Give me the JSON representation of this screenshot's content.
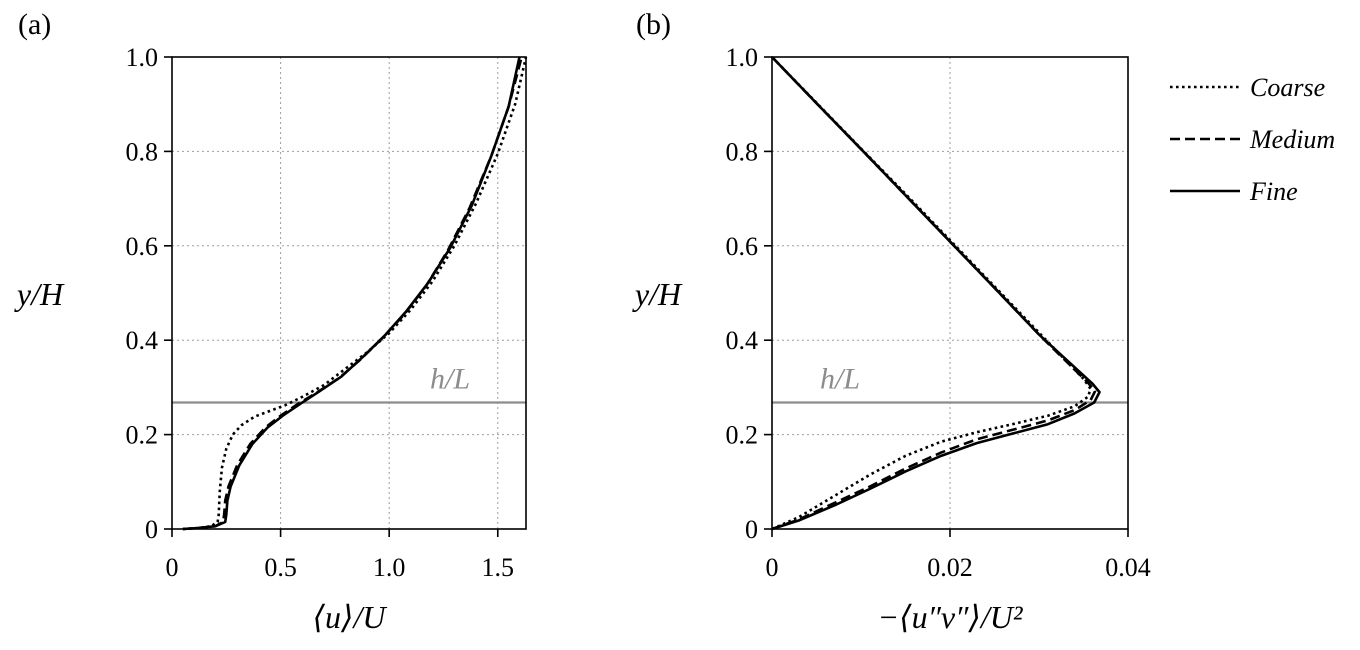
{
  "chart_data": [
    {
      "type": "line",
      "panel_label": "(a)",
      "xlabel": "⟨u⟩/U",
      "ylabel": "y/H",
      "xlim": [
        0,
        1.63
      ],
      "ylim": [
        0,
        1.0
      ],
      "xticks": [
        0,
        0.5,
        1.0,
        1.5
      ],
      "xtick_labels": [
        "0",
        "0.5",
        "1.0",
        "1.5"
      ],
      "yticks": [
        0,
        0.2,
        0.4,
        0.6,
        0.8,
        1.0
      ],
      "ytick_labels": [
        "0",
        "0.2",
        "0.4",
        "0.6",
        "0.8",
        "1.0"
      ],
      "grid": true,
      "reference_line": {
        "y": 0.268,
        "label": "h/L"
      },
      "series": [
        {
          "name": "Coarse",
          "style": "dotted",
          "x": [
            0.05,
            0.12,
            0.18,
            0.21,
            0.215,
            0.22,
            0.23,
            0.25,
            0.28,
            0.32,
            0.38,
            0.45,
            0.52,
            0.6,
            0.7,
            0.8,
            0.9,
            1.0,
            1.1,
            1.2,
            1.3,
            1.4,
            1.5,
            1.58,
            1.63
          ],
          "y": [
            0.0,
            0.002,
            0.006,
            0.015,
            0.03,
            0.08,
            0.13,
            0.17,
            0.2,
            0.22,
            0.238,
            0.25,
            0.262,
            0.28,
            0.305,
            0.34,
            0.375,
            0.415,
            0.465,
            0.525,
            0.6,
            0.69,
            0.795,
            0.9,
            1.0
          ]
        },
        {
          "name": "Medium",
          "style": "dashed",
          "x": [
            0.05,
            0.12,
            0.2,
            0.235,
            0.24,
            0.245,
            0.26,
            0.3,
            0.36,
            0.43,
            0.5,
            0.58,
            0.67,
            0.77,
            0.87,
            0.97,
            1.07,
            1.17,
            1.27,
            1.37,
            1.47,
            1.55,
            1.61
          ],
          "y": [
            0.0,
            0.002,
            0.006,
            0.015,
            0.03,
            0.06,
            0.09,
            0.135,
            0.18,
            0.215,
            0.24,
            0.265,
            0.29,
            0.32,
            0.36,
            0.405,
            0.455,
            0.515,
            0.59,
            0.68,
            0.79,
            0.895,
            1.0
          ]
        },
        {
          "name": "Fine",
          "style": "solid",
          "x": [
            0.05,
            0.12,
            0.2,
            0.245,
            0.25,
            0.255,
            0.27,
            0.31,
            0.37,
            0.44,
            0.51,
            0.59,
            0.68,
            0.78,
            0.88,
            0.98,
            1.08,
            1.18,
            1.28,
            1.38,
            1.47,
            1.55,
            1.6
          ],
          "y": [
            0.0,
            0.002,
            0.006,
            0.015,
            0.03,
            0.06,
            0.09,
            0.135,
            0.18,
            0.215,
            0.24,
            0.265,
            0.292,
            0.323,
            0.365,
            0.41,
            0.462,
            0.522,
            0.595,
            0.685,
            0.79,
            0.895,
            1.0
          ]
        }
      ]
    },
    {
      "type": "line",
      "panel_label": "(b)",
      "xlabel": "−⟨u″v″⟩/U²",
      "ylabel": "y/H",
      "xlim": [
        0,
        0.04
      ],
      "ylim": [
        0,
        1.0
      ],
      "xticks": [
        0,
        0.02,
        0.04
      ],
      "xtick_labels": [
        "0",
        "0.02",
        "0.04"
      ],
      "yticks": [
        0,
        0.2,
        0.4,
        0.6,
        0.8,
        1.0
      ],
      "ytick_labels": [
        "0",
        "0.2",
        "0.4",
        "0.6",
        "0.8",
        "1.0"
      ],
      "grid": true,
      "reference_line": {
        "y": 0.268,
        "label": "h/L"
      },
      "series": [
        {
          "name": "Coarse",
          "style": "dotted",
          "x": [
            0.0,
            0.003,
            0.007,
            0.011,
            0.015,
            0.019,
            0.023,
            0.027,
            0.031,
            0.034,
            0.0355,
            0.0358,
            0.035,
            0.03,
            0.025,
            0.02,
            0.015,
            0.01,
            0.005,
            0.0
          ],
          "y": [
            0.0,
            0.025,
            0.07,
            0.115,
            0.155,
            0.185,
            0.205,
            0.222,
            0.24,
            0.26,
            0.28,
            0.297,
            0.318,
            0.416,
            0.514,
            0.612,
            0.71,
            0.806,
            0.903,
            1.0
          ]
        },
        {
          "name": "Medium",
          "style": "dashed",
          "x": [
            0.0,
            0.003,
            0.007,
            0.011,
            0.015,
            0.019,
            0.023,
            0.027,
            0.031,
            0.034,
            0.0358,
            0.0363,
            0.0355,
            0.03,
            0.025,
            0.02,
            0.015,
            0.01,
            0.005,
            0.0
          ],
          "y": [
            0.0,
            0.02,
            0.055,
            0.09,
            0.128,
            0.162,
            0.19,
            0.21,
            0.23,
            0.252,
            0.273,
            0.292,
            0.31,
            0.412,
            0.511,
            0.609,
            0.707,
            0.805,
            0.902,
            1.0
          ]
        },
        {
          "name": "Fine",
          "style": "solid",
          "x": [
            0.0,
            0.003,
            0.007,
            0.011,
            0.015,
            0.019,
            0.023,
            0.027,
            0.031,
            0.034,
            0.0362,
            0.0368,
            0.036,
            0.03,
            0.025,
            0.02,
            0.015,
            0.01,
            0.005,
            0.0
          ],
          "y": [
            0.0,
            0.018,
            0.05,
            0.085,
            0.122,
            0.155,
            0.182,
            0.202,
            0.222,
            0.245,
            0.268,
            0.29,
            0.308,
            0.412,
            0.511,
            0.609,
            0.707,
            0.805,
            0.902,
            1.0
          ]
        }
      ]
    }
  ],
  "legend": {
    "placement": "right",
    "entries": [
      {
        "label": "Coarse",
        "style": "dotted"
      },
      {
        "label": "Medium",
        "style": "dashed"
      },
      {
        "label": "Fine",
        "style": "solid"
      }
    ]
  },
  "colors": {
    "series": "#000000",
    "reference_line": "#8c8c8c",
    "grid": "#9e9e9e"
  }
}
